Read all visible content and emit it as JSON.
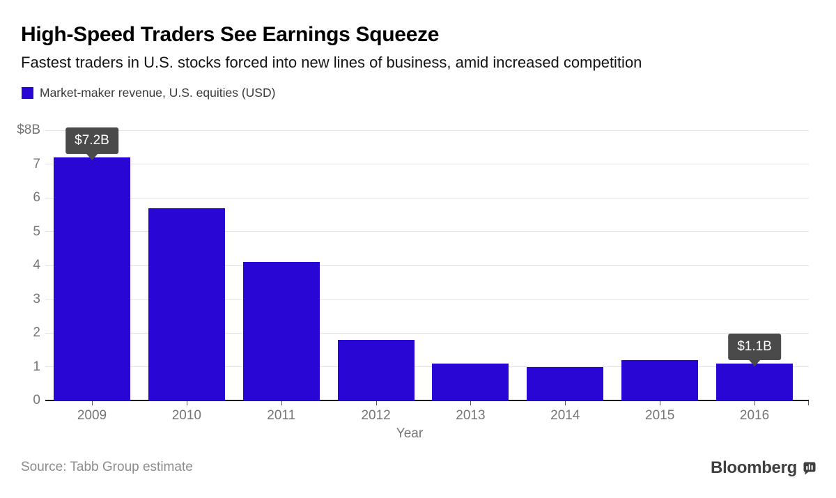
{
  "header": {
    "title": "High-Speed Traders See Earnings Squeeze",
    "subtitle": "Fastest traders in U.S. stocks forced into new lines of business, amid increased competition"
  },
  "legend": {
    "label": "Market-maker revenue, U.S. equities (USD)",
    "swatch_color": "#2a06d4"
  },
  "chart_data": {
    "type": "bar",
    "title": "High-Speed Traders See Earnings Squeeze",
    "subtitle": "Fastest traders in U.S. stocks forced into new lines of business, amid increased competition",
    "series_name": "Market-maker revenue, U.S. equities (USD)",
    "categories": [
      "2009",
      "2010",
      "2011",
      "2012",
      "2013",
      "2014",
      "2015",
      "2016"
    ],
    "values": [
      7.2,
      5.7,
      4.1,
      1.8,
      1.1,
      1.0,
      1.2,
      1.1
    ],
    "xlabel": "Year",
    "ylabel": "",
    "ylim": [
      0,
      8
    ],
    "yticks": [
      0,
      1,
      2,
      3,
      4,
      5,
      6,
      7,
      8
    ],
    "ytick_labels": [
      "0",
      "1",
      "2",
      "3",
      "4",
      "5",
      "6",
      "7",
      "$8B"
    ],
    "grid": true,
    "legend_position": "top-left",
    "bar_color": "#2a06d4",
    "annotations": [
      {
        "category": "2009",
        "text": "$7.2B"
      },
      {
        "category": "2016",
        "text": "$1.1B"
      }
    ]
  },
  "footer": {
    "source": "Source: Tabb Group estimate",
    "brand": "Bloomberg"
  }
}
